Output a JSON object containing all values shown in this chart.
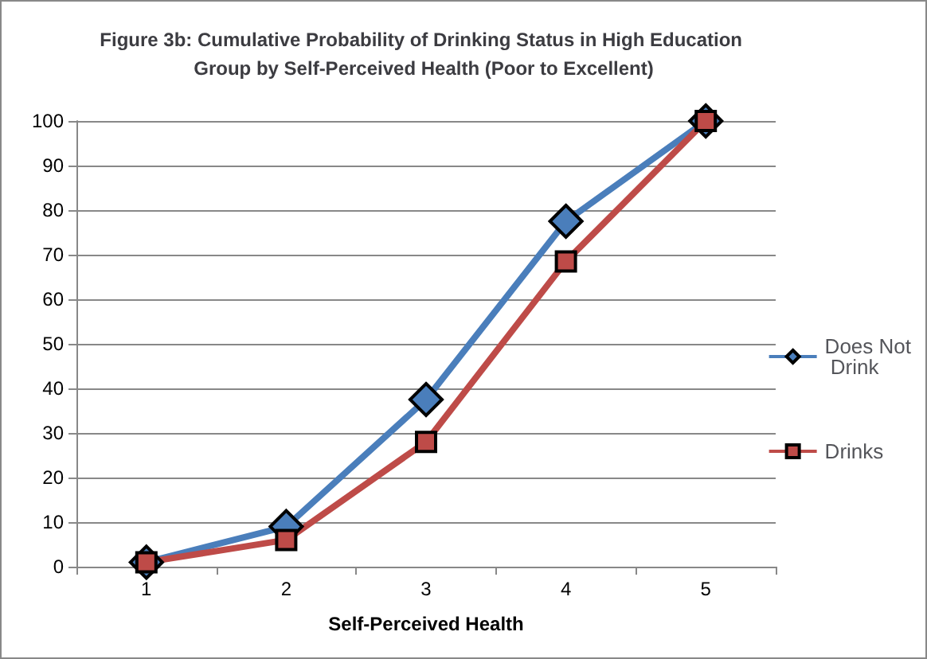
{
  "chart_data": {
    "type": "line",
    "title": "Figure 3b: Cumulative Probability of Drinking Status in High Education Group by Self-Perceived Health (Poor to Excellent)",
    "xlabel": "Self-Perceived Health",
    "categories": [
      "1",
      "2",
      "3",
      "4",
      "5"
    ],
    "series": [
      {
        "name": "Does Not Drink",
        "color": "#4a7ebb",
        "marker": "diamond",
        "values": [
          1,
          9,
          37.5,
          77.5,
          100
        ]
      },
      {
        "name": "Drinks",
        "color": "#be4b48",
        "marker": "square",
        "values": [
          1,
          6,
          28,
          68.5,
          100
        ]
      }
    ],
    "ylim": [
      0,
      100
    ],
    "yticks": [
      0,
      10,
      20,
      30,
      40,
      50,
      60,
      70,
      80,
      90,
      100
    ],
    "grid": "y",
    "legend": "right"
  }
}
